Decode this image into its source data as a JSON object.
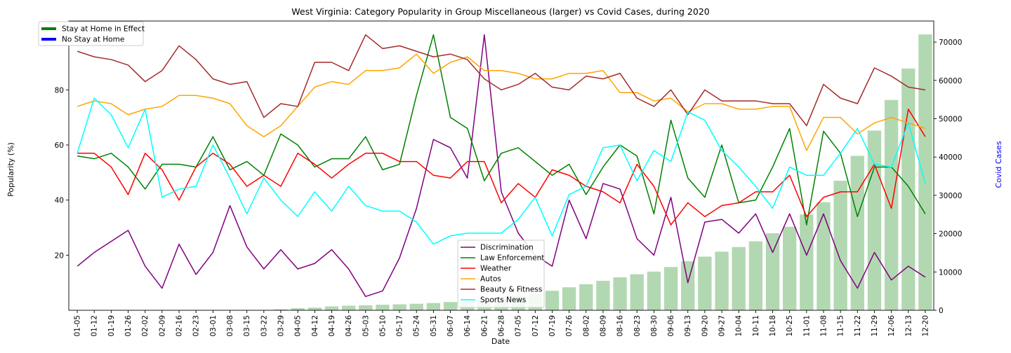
{
  "chart_data": {
    "type": "line",
    "title": "West Virginia: Category Popularity in Group Miscellaneous (larger) vs Covid Cases, during 2020",
    "xlabel": "Date",
    "ylabel": "Popularity (%)",
    "y2label": "Covid Cases",
    "ylim": [
      0,
      105
    ],
    "y2lim": [
      0,
      75500
    ],
    "yticks": [
      20,
      40,
      60,
      80,
      100
    ],
    "y2ticks": [
      0,
      10000,
      20000,
      30000,
      40000,
      50000,
      60000,
      70000
    ],
    "categories": [
      "01-05",
      "01-12",
      "01-19",
      "01-26",
      "02-02",
      "02-09",
      "02-16",
      "02-23",
      "03-01",
      "03-08",
      "03-15",
      "03-22",
      "03-29",
      "04-05",
      "04-12",
      "04-19",
      "04-26",
      "05-03",
      "05-10",
      "05-17",
      "05-24",
      "05-31",
      "06-07",
      "06-14",
      "06-21",
      "06-28",
      "07-05",
      "07-12",
      "07-19",
      "07-26",
      "08-02",
      "08-09",
      "08-16",
      "08-23",
      "08-30",
      "09-06",
      "09-13",
      "09-20",
      "09-27",
      "10-04",
      "10-11",
      "10-18",
      "10-25",
      "11-01",
      "11-08",
      "11-15",
      "11-22",
      "11-29",
      "12-06",
      "12-13",
      "12-20"
    ],
    "series": [
      {
        "name": "Discrimination",
        "color": "#800080",
        "values": [
          16,
          21,
          25,
          29,
          16,
          8,
          24,
          13,
          21,
          38,
          23,
          15,
          22,
          15,
          17,
          22,
          15,
          5,
          7,
          19,
          37,
          62,
          59,
          48,
          100,
          43,
          28,
          20,
          16,
          40,
          26,
          46,
          44,
          26,
          20,
          41,
          10,
          32,
          33,
          28,
          35,
          21,
          35,
          20,
          35,
          18,
          8,
          21,
          11,
          16,
          12
        ]
      },
      {
        "name": "Law Enforcement",
        "color": "#008000",
        "values": [
          56,
          55,
          57,
          52,
          44,
          53,
          53,
          52,
          63,
          51,
          54,
          49,
          64,
          60,
          52,
          55,
          55,
          63,
          51,
          53,
          78,
          100,
          70,
          66,
          47,
          57,
          59,
          54,
          49,
          53,
          42,
          52,
          60,
          56,
          35,
          69,
          48,
          41,
          60,
          39,
          40,
          52,
          66,
          31,
          65,
          57,
          34,
          52,
          52,
          45,
          35
        ]
      },
      {
        "name": "Weather",
        "color": "#ff0000",
        "values": [
          57,
          57,
          52,
          42,
          57,
          51,
          40,
          52,
          57,
          53,
          45,
          49,
          45,
          57,
          53,
          48,
          53,
          57,
          57,
          54,
          54,
          49,
          48,
          54,
          54,
          39,
          46,
          41,
          51,
          49,
          45,
          43,
          39,
          53,
          45,
          31,
          39,
          34,
          38,
          39,
          43,
          43,
          49,
          34,
          41,
          43,
          43,
          53,
          37,
          73,
          63
        ]
      },
      {
        "name": "Autos",
        "color": "#ffa500",
        "values": [
          74,
          76,
          75,
          71,
          73,
          74,
          78,
          78,
          77,
          75,
          67,
          63,
          67,
          74,
          81,
          83,
          82,
          87,
          87,
          88,
          93,
          86,
          90,
          92,
          87,
          87,
          86,
          84,
          84,
          86,
          86,
          87,
          79,
          79,
          76,
          77,
          72,
          75,
          75,
          73,
          73,
          74,
          74,
          58,
          70,
          70,
          64,
          68,
          70,
          68,
          66
        ]
      },
      {
        "name": "Beauty & Fitness",
        "color": "#a52a2a",
        "values": [
          94,
          92,
          91,
          89,
          83,
          87,
          96,
          91,
          84,
          82,
          83,
          70,
          75,
          74,
          90,
          90,
          87,
          100,
          95,
          96,
          94,
          92,
          93,
          91,
          84,
          80,
          82,
          86,
          81,
          80,
          85,
          84,
          86,
          77,
          74,
          80,
          71,
          80,
          76,
          76,
          76,
          75,
          75,
          67,
          82,
          77,
          75,
          88,
          85,
          81,
          80
        ]
      },
      {
        "name": "Sports News",
        "color": "#00ffff",
        "values": [
          57,
          77,
          71,
          59,
          73,
          41,
          44,
          45,
          60,
          48,
          35,
          48,
          40,
          34,
          43,
          36,
          45,
          38,
          36,
          36,
          32,
          24,
          27,
          28,
          28,
          28,
          33,
          41,
          27,
          42,
          45,
          59,
          60,
          47,
          58,
          54,
          72,
          69,
          58,
          52,
          45,
          37,
          52,
          49,
          49,
          57,
          66,
          53,
          52,
          68,
          46
        ]
      }
    ],
    "bars": {
      "name": "Covid Cases",
      "color": "#b2d8b2",
      "values": [
        0,
        0,
        0,
        0,
        0,
        0,
        0,
        0,
        0,
        0,
        0,
        30,
        240,
        540,
        700,
        1000,
        1200,
        1300,
        1450,
        1550,
        1700,
        1900,
        2150,
        2400,
        2600,
        3000,
        3800,
        4300,
        5100,
        6000,
        6800,
        7700,
        8600,
        9400,
        10100,
        11300,
        12800,
        14000,
        15300,
        16500,
        18000,
        20100,
        21800,
        25000,
        28200,
        33800,
        40300,
        46900,
        54900,
        63100,
        72000
      ]
    },
    "legend_top_left": [
      {
        "label": "Stay at Home in Effect",
        "color": "#008000"
      },
      {
        "label": "No Stay at Home",
        "color": "#0000ff"
      }
    ],
    "legend_placement": "lower-center",
    "grid": false
  }
}
